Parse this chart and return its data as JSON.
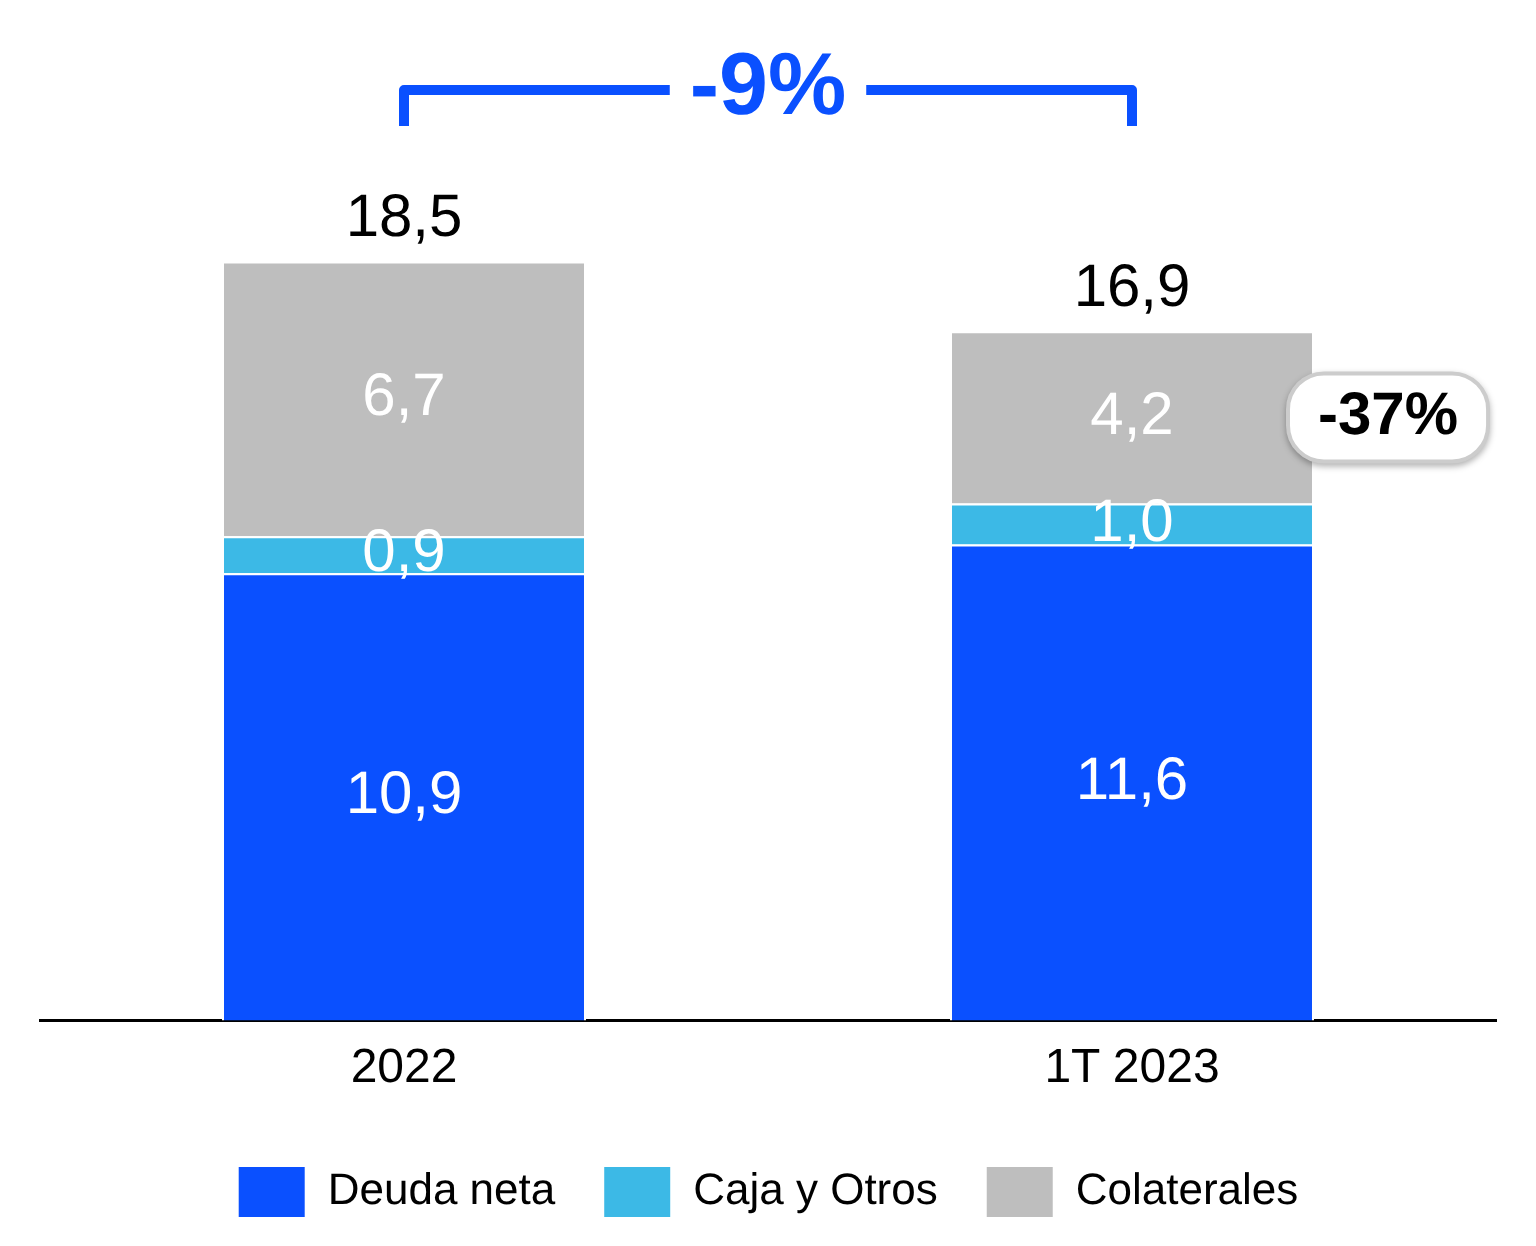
{
  "chart_data": {
    "type": "bar",
    "stacked": true,
    "categories": [
      "2022",
      "1T 2023"
    ],
    "series": [
      {
        "name": "Deuda neta",
        "color": "#0a50ff",
        "values": [
          10.9,
          11.6
        ],
        "value_labels": [
          "10,9",
          "11,6"
        ]
      },
      {
        "name": "Caja y Otros",
        "color": "#3cb9e6",
        "values": [
          0.9,
          1.0
        ],
        "value_labels": [
          "0,9",
          "1,0"
        ]
      },
      {
        "name": "Colaterales",
        "color": "#bebebe",
        "values": [
          6.7,
          4.2
        ],
        "value_labels": [
          "6,7",
          "4,2"
        ]
      }
    ],
    "totals": [
      "18,5",
      "16,9"
    ],
    "annotations": [
      "-9%",
      "-37%"
    ],
    "legend": "bottom",
    "grid": false,
    "tick_labels": "x"
  }
}
